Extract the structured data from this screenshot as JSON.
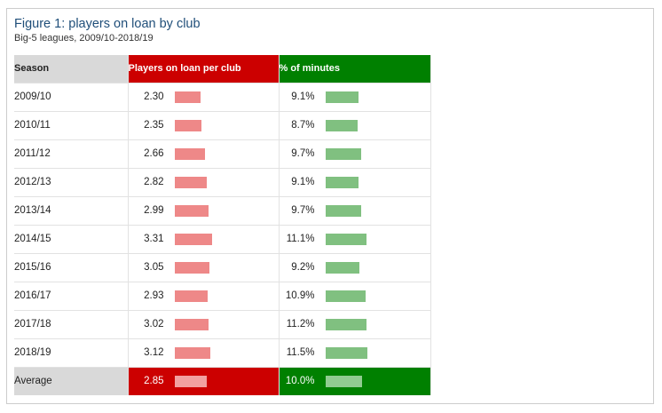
{
  "title": "Figure 1: players on loan by club",
  "subtitle": "Big-5 leagues, 2009/10-2018/19",
  "headers": {
    "season": "Season",
    "loans": "Players on loan per club",
    "minutes": "% of minutes"
  },
  "colors": {
    "title": "#1f4e79",
    "loan_header": "#cc0000",
    "minutes_header": "#008000",
    "loan_bar": "#ee8888",
    "minutes_bar": "#80c080",
    "season_header": "#d9d9d9"
  },
  "chart_data": {
    "type": "table",
    "columns": [
      "Season",
      "Players on loan per club",
      "% of minutes"
    ],
    "rows": [
      {
        "season": "2009/10",
        "loans": 2.3,
        "loans_label": "2.30",
        "minutes": 9.1,
        "minutes_label": "9.1%"
      },
      {
        "season": "2010/11",
        "loans": 2.35,
        "loans_label": "2.35",
        "minutes": 8.7,
        "minutes_label": "8.7%"
      },
      {
        "season": "2011/12",
        "loans": 2.66,
        "loans_label": "2.66",
        "minutes": 9.7,
        "minutes_label": "9.7%"
      },
      {
        "season": "2012/13",
        "loans": 2.82,
        "loans_label": "2.82",
        "minutes": 9.1,
        "minutes_label": "9.1%"
      },
      {
        "season": "2013/14",
        "loans": 2.99,
        "loans_label": "2.99",
        "minutes": 9.7,
        "minutes_label": "9.7%"
      },
      {
        "season": "2014/15",
        "loans": 3.31,
        "loans_label": "3.31",
        "minutes": 11.1,
        "minutes_label": "11.1%"
      },
      {
        "season": "2015/16",
        "loans": 3.05,
        "loans_label": "3.05",
        "minutes": 9.2,
        "minutes_label": "9.2%"
      },
      {
        "season": "2016/17",
        "loans": 2.93,
        "loans_label": "2.93",
        "minutes": 10.9,
        "minutes_label": "10.9%"
      },
      {
        "season": "2017/18",
        "loans": 3.02,
        "loans_label": "3.02",
        "minutes": 11.2,
        "minutes_label": "11.2%"
      },
      {
        "season": "2018/19",
        "loans": 3.12,
        "loans_label": "3.12",
        "minutes": 11.5,
        "minutes_label": "11.5%"
      }
    ],
    "average": {
      "season": "Average",
      "loans": 2.85,
      "loans_label": "2.85",
      "minutes": 10.0,
      "minutes_label": "10.0%"
    }
  }
}
